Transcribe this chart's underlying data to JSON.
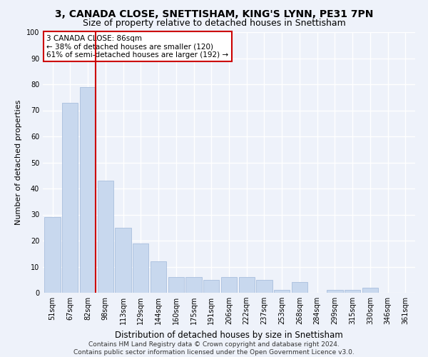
{
  "title": "3, CANADA CLOSE, SNETTISHAM, KING'S LYNN, PE31 7PN",
  "subtitle": "Size of property relative to detached houses in Snettisham",
  "xlabel": "Distribution of detached houses by size in Snettisham",
  "ylabel": "Number of detached properties",
  "categories": [
    "51sqm",
    "67sqm",
    "82sqm",
    "98sqm",
    "113sqm",
    "129sqm",
    "144sqm",
    "160sqm",
    "175sqm",
    "191sqm",
    "206sqm",
    "222sqm",
    "237sqm",
    "253sqm",
    "268sqm",
    "284sqm",
    "299sqm",
    "315sqm",
    "330sqm",
    "346sqm",
    "361sqm"
  ],
  "values": [
    29,
    73,
    79,
    43,
    25,
    19,
    12,
    6,
    6,
    5,
    6,
    6,
    5,
    1,
    4,
    0,
    1,
    1,
    2,
    0,
    0
  ],
  "bar_color": "#c8d8ee",
  "bar_edge_color": "#a8bedd",
  "background_color": "#eef2fa",
  "grid_color": "#ffffff",
  "annotation_text": "3 CANADA CLOSE: 86sqm\n← 38% of detached houses are smaller (120)\n61% of semi-detached houses are larger (192) →",
  "annotation_box_color": "#ffffff",
  "annotation_box_edge_color": "#cc0000",
  "vline_color": "#cc0000",
  "vline_x": 2.45,
  "ylim": [
    0,
    100
  ],
  "yticks": [
    0,
    10,
    20,
    30,
    40,
    50,
    60,
    70,
    80,
    90,
    100
  ],
  "footer": "Contains HM Land Registry data © Crown copyright and database right 2024.\nContains public sector information licensed under the Open Government Licence v3.0.",
  "title_fontsize": 10,
  "subtitle_fontsize": 9,
  "xlabel_fontsize": 8.5,
  "ylabel_fontsize": 8,
  "tick_fontsize": 7,
  "annotation_fontsize": 7.5,
  "footer_fontsize": 6.5
}
